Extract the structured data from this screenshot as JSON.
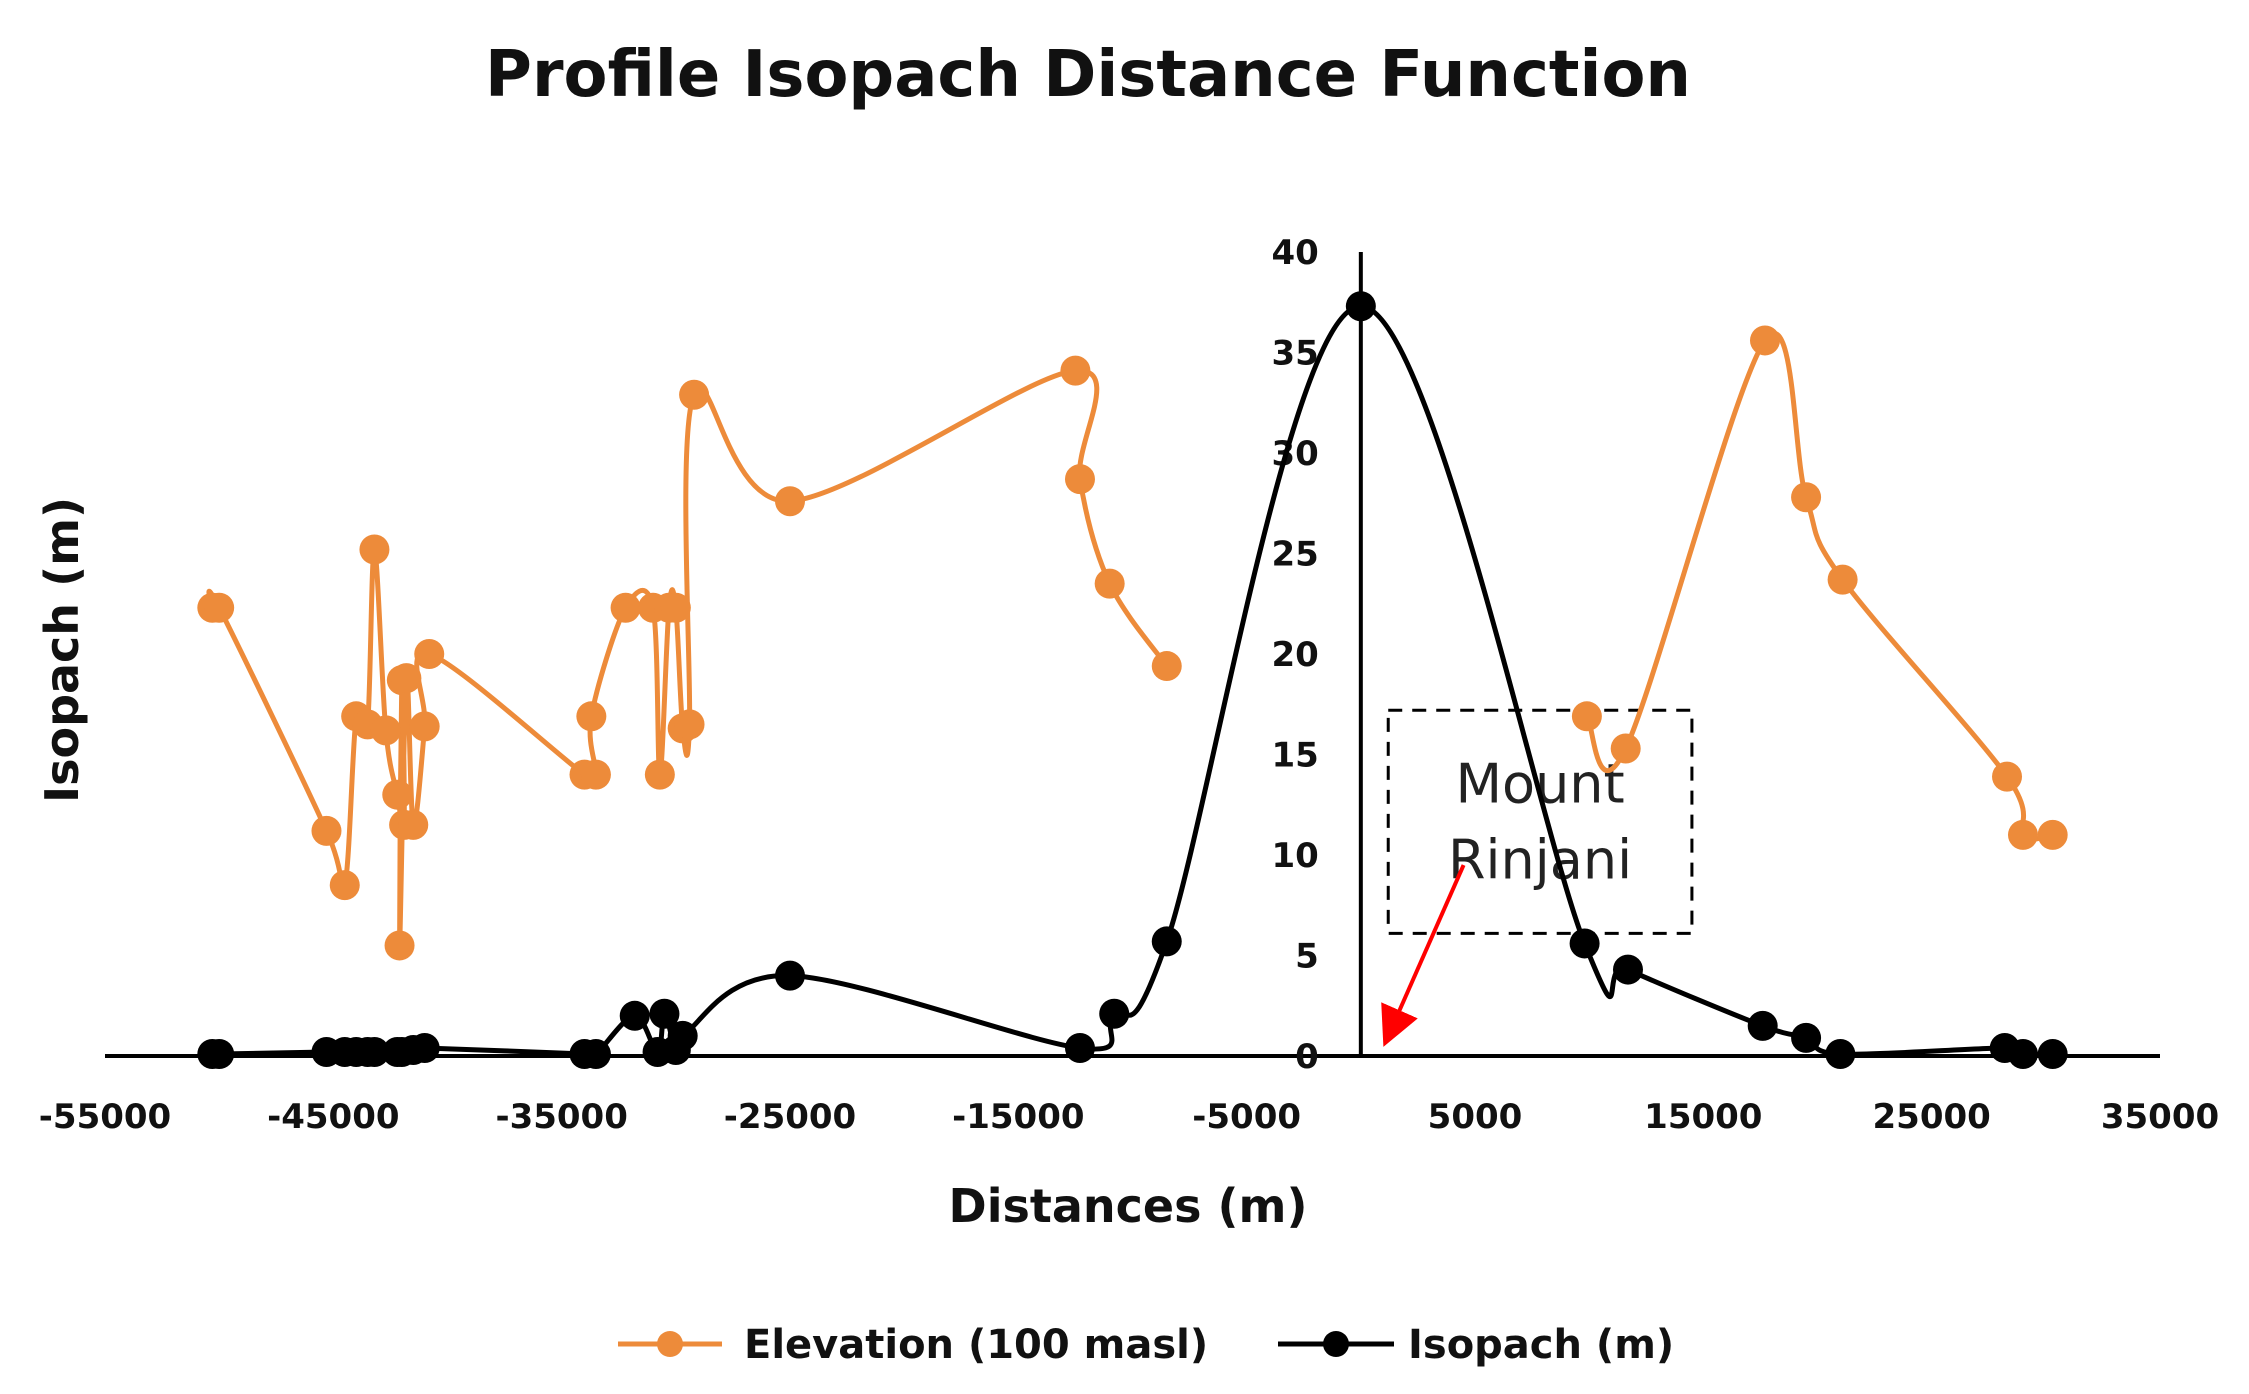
{
  "chart_data": {
    "type": "line",
    "title": "Profile Isopach Distance Function",
    "xlabel": "Distances (m)",
    "ylabel": "Isopach (m)",
    "xlim": [
      -55000,
      35000
    ],
    "ylim": [
      0,
      40
    ],
    "x_ticks": [
      -55000,
      -45000,
      -35000,
      -25000,
      -15000,
      -5000,
      5000,
      15000,
      25000,
      35000
    ],
    "y_ticks": [
      0,
      5,
      10,
      15,
      20,
      25,
      30,
      35,
      40
    ],
    "y_axis_at_x": 0,
    "grid": false,
    "legend_position": "bottom",
    "series": [
      {
        "name": "Elevation (100 masl)",
        "color": "#ED8B3A",
        "marker": "circle",
        "segments": [
          {
            "x": [
              -50300,
              -50000,
              -45300,
              -44500,
              -44000,
              -43500,
              -43200,
              -42700,
              -42200,
              -41900,
              -42000,
              -42100,
              -41800,
              -41500,
              -41000,
              -40800,
              -34000,
              -33500,
              -33700,
              -32200,
              -31000,
              -30700,
              -30300,
              -30000,
              -29700,
              -29400,
              -29200,
              -25000,
              -12500,
              -12300,
              -11000,
              -8500
            ],
            "y": [
              22.3,
              22.3,
              11.2,
              8.5,
              16.9,
              16.5,
              25.2,
              16.2,
              13.0,
              11.5,
              18.7,
              5.5,
              18.8,
              11.5,
              16.4,
              20.0,
              14.0,
              14.0,
              16.9,
              22.3,
              22.3,
              14.0,
              22.3,
              22.3,
              16.3,
              16.5,
              32.9,
              27.6,
              34.1,
              28.7,
              23.5,
              19.4
            ]
          },
          {
            "x": [
              9900,
              11600,
              17700,
              19500,
              21100,
              28300,
              29000,
              30300
            ],
            "y": [
              16.9,
              15.3,
              35.6,
              27.8,
              23.7,
              13.9,
              11.0,
              11.0
            ]
          }
        ]
      },
      {
        "name": "Isopach (m)",
        "color": "#000000",
        "marker": "circle",
        "x": [
          -50300,
          -50000,
          -45300,
          -44500,
          -44000,
          -43500,
          -43200,
          -42200,
          -42000,
          -41500,
          -41000,
          -34000,
          -33500,
          -31800,
          -30800,
          -30500,
          -30000,
          -29700,
          -25000,
          -12300,
          -10800,
          -8500,
          0,
          9800,
          11700,
          17600,
          19500,
          21000,
          28200,
          29000,
          30300
        ],
        "y": [
          0.1,
          0.1,
          0.2,
          0.2,
          0.2,
          0.2,
          0.2,
          0.2,
          0.2,
          0.3,
          0.4,
          0.1,
          0.1,
          2.0,
          0.2,
          2.1,
          0.3,
          1.0,
          4.0,
          0.4,
          2.1,
          5.7,
          37.3,
          5.6,
          4.3,
          1.5,
          0.9,
          0.1,
          0.4,
          0.1,
          0.1
        ]
      }
    ],
    "annotation": {
      "line1": "Mount",
      "line2": "Rinjani",
      "box_x": [
        1200,
        14500
      ],
      "box_y": [
        6.1,
        17.2
      ],
      "arrow_from": [
        4500,
        9.5
      ],
      "arrow_to": [
        1200,
        1.0
      ],
      "border_color": "#000000",
      "arrow_color": "#FF0000"
    }
  }
}
